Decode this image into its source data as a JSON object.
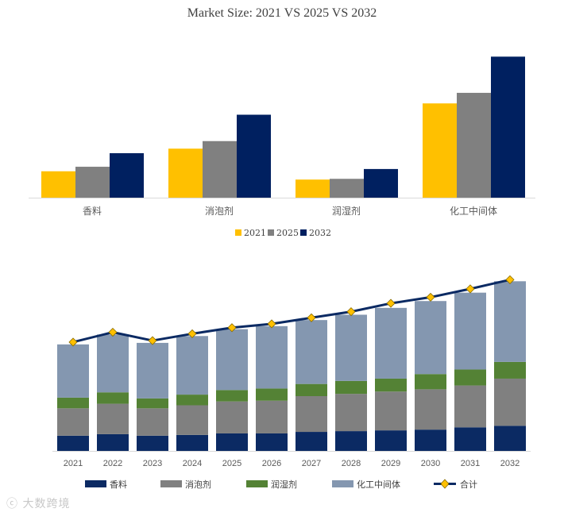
{
  "colors": {
    "c2021": "#FFC000",
    "c2025": "#808080",
    "c2032": "#002060",
    "xiangliao": "#0B2A63",
    "xiaopaoji": "#808080",
    "runshiji": "#548235",
    "huagong": "#8497B0",
    "heji": "#0B2A63",
    "marker": "#FFC000"
  },
  "chart_data": [
    {
      "type": "bar",
      "title": "Market Size: 2021 VS 2025 VS 2032",
      "categories": [
        "香料",
        "消泡剂",
        "润湿剂",
        "化工中间体"
      ],
      "series": [
        {
          "name": "2021",
          "color_key": "c2021",
          "values": [
            35,
            65,
            24,
            125
          ]
        },
        {
          "name": "2025",
          "color_key": "c2025",
          "values": [
            41,
            75,
            25,
            139
          ]
        },
        {
          "name": "2032",
          "color_key": "c2032",
          "values": [
            59,
            110,
            38,
            187
          ]
        }
      ],
      "ylim": [
        0,
        200
      ],
      "legend": "bottom",
      "grid": false
    },
    {
      "type": "bar-stacked-with-line",
      "categories": [
        "2021",
        "2022",
        "2023",
        "2024",
        "2025",
        "2026",
        "2027",
        "2028",
        "2029",
        "2030",
        "2031",
        "2032"
      ],
      "series": [
        {
          "name": "香料",
          "color_key": "xiangliao",
          "values": [
            20,
            22,
            20,
            21,
            23,
            23,
            25,
            26,
            27,
            28,
            31,
            33
          ]
        },
        {
          "name": "消泡剂",
          "color_key": "xiaopaoji",
          "values": [
            36,
            40,
            36,
            39,
            42,
            43,
            47,
            49,
            51,
            53,
            55,
            62
          ]
        },
        {
          "name": "润湿剂",
          "color_key": "runshiji",
          "values": [
            14,
            15,
            13,
            14,
            15,
            16,
            16,
            17,
            17,
            20,
            21,
            22
          ]
        },
        {
          "name": "化工中间体",
          "color_key": "huagong",
          "values": [
            70,
            76,
            73,
            77,
            80,
            82,
            84,
            87,
            93,
            96,
            101,
            106
          ]
        }
      ],
      "line": {
        "name": "合计",
        "color_key": "heji",
        "marker_key": "marker",
        "values": [
          143,
          156,
          145,
          154,
          162,
          167,
          175,
          183,
          194,
          202,
          213,
          225
        ]
      },
      "ylim": [
        0,
        240
      ],
      "legend": "bottom",
      "grid": false
    }
  ],
  "watermark": "大数跨境"
}
